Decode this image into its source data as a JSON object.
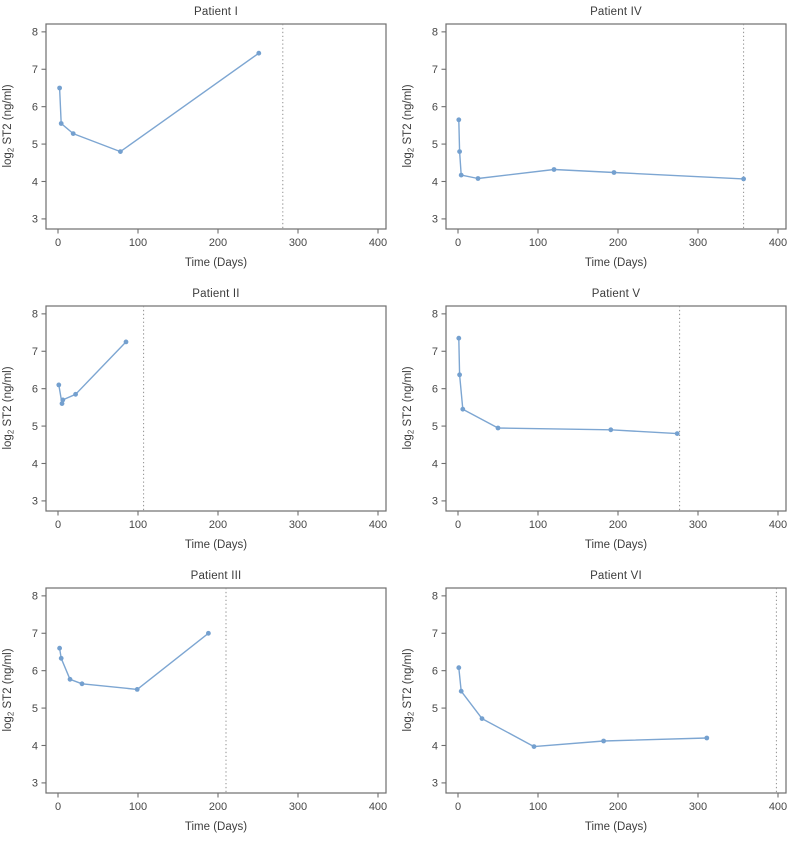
{
  "figure": {
    "background": "#ffffff",
    "grid": "2 columns x 3 rows of line charts"
  },
  "styles": {
    "line_color": "#7da6d2",
    "marker_color": "#74a0cf",
    "frame_color": "#6f6f6f",
    "tick_color": "#6f6f6f",
    "ref_line_color": "#8f8f8f",
    "text_color": "#3e3e3e"
  },
  "axes": {
    "xlabel": "Time (Days)",
    "ylabel_pre": "log",
    "ylabel_sub": "2",
    "ylabel_post": " ST2 (ng/ml)",
    "x_ticks": [
      0,
      100,
      200,
      300,
      400
    ],
    "y_ticks": [
      3,
      4,
      5,
      6,
      7,
      8
    ],
    "x_range": [
      -15,
      410
    ],
    "y_range": [
      2.73,
      8.21
    ],
    "grid_lines": "off",
    "legend": "none"
  },
  "chart_data": [
    {
      "type": "line",
      "title": "Patient I",
      "xlabel": "Time (Days)",
      "ylabel": "log2 ST2 (ng/ml)",
      "x": [
        2,
        4,
        19,
        78,
        251
      ],
      "y": [
        6.5,
        5.55,
        5.28,
        4.8,
        7.43
      ],
      "ref_line_x": 281,
      "xlim": [
        -15,
        410
      ],
      "ylim": [
        2.73,
        8.21
      ]
    },
    {
      "type": "line",
      "title": "Patient IV",
      "xlabel": "Time (Days)",
      "ylabel": "log2 ST2 (ng/ml)",
      "x": [
        1,
        2,
        4,
        25,
        120,
        195,
        357
      ],
      "y": [
        5.65,
        4.8,
        4.17,
        4.08,
        4.32,
        4.24,
        4.07
      ],
      "ref_line_x": 357,
      "xlim": [
        -15,
        410
      ],
      "ylim": [
        2.73,
        8.21
      ]
    },
    {
      "type": "line",
      "title": "Patient II",
      "xlabel": "Time (Days)",
      "ylabel": "log2 ST2 (ng/ml)",
      "x": [
        1,
        5,
        6,
        22,
        85
      ],
      "y": [
        6.1,
        5.6,
        5.7,
        5.85,
        7.25
      ],
      "ref_line_x": 107,
      "xlim": [
        -15,
        410
      ],
      "ylim": [
        2.73,
        8.21
      ]
    },
    {
      "type": "line",
      "title": "Patient V",
      "xlabel": "Time (Days)",
      "ylabel": "log2 ST2 (ng/ml)",
      "x": [
        1,
        2,
        6,
        50,
        191,
        274
      ],
      "y": [
        7.35,
        6.37,
        5.45,
        4.95,
        4.9,
        4.8
      ],
      "ref_line_x": 277,
      "xlim": [
        -15,
        410
      ],
      "ylim": [
        2.73,
        8.21
      ]
    },
    {
      "type": "line",
      "title": "Patient III",
      "xlabel": "Time (Days)",
      "ylabel": "log2 ST2 (ng/ml)",
      "x": [
        2,
        4,
        15,
        30,
        99,
        188
      ],
      "y": [
        6.6,
        6.33,
        5.77,
        5.65,
        5.5,
        7.0
      ],
      "ref_line_x": 210,
      "xlim": [
        -15,
        410
      ],
      "ylim": [
        2.73,
        8.21
      ]
    },
    {
      "type": "line",
      "title": "Patient VI",
      "xlabel": "Time (Days)",
      "ylabel": "log2 ST2 (ng/ml)",
      "x": [
        1,
        4,
        30,
        95,
        182,
        311
      ],
      "y": [
        6.08,
        5.45,
        4.72,
        3.97,
        4.12,
        4.2
      ],
      "ref_line_x": 398,
      "xlim": [
        -15,
        410
      ],
      "ylim": [
        2.73,
        8.21
      ]
    }
  ]
}
